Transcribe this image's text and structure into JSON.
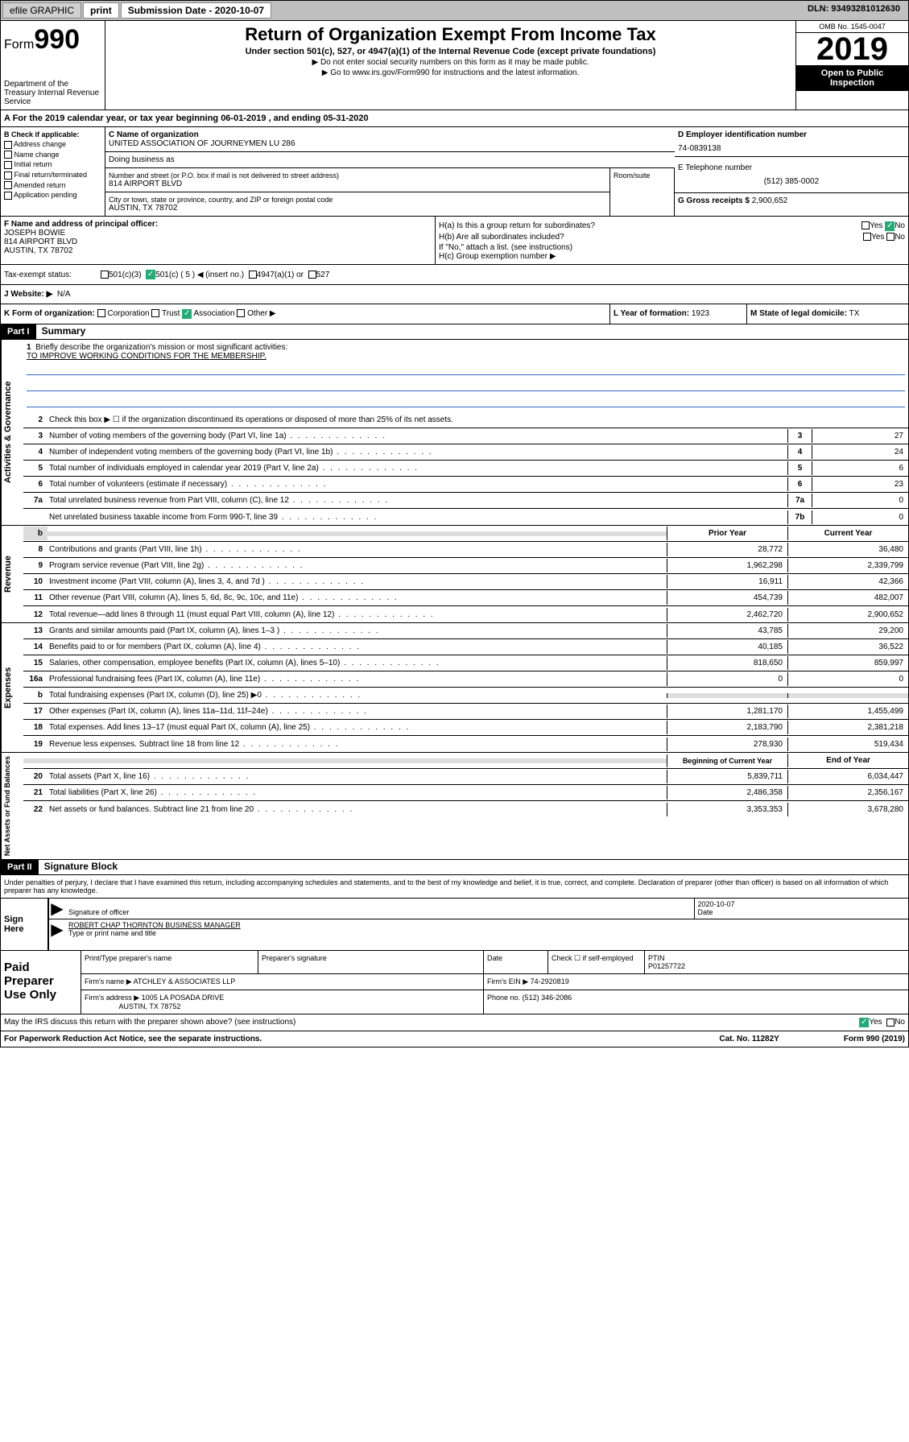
{
  "topbar": {
    "efile": "efile GRAPHIC",
    "print": "print",
    "sub_date_label": "Submission Date - 2020-10-07",
    "dln": "DLN: 93493281012630"
  },
  "header": {
    "form_word": "Form",
    "form_no": "990",
    "title": "Return of Organization Exempt From Income Tax",
    "subtitle": "Under section 501(c), 527, or 4947(a)(1) of the Internal Revenue Code (except private foundations)",
    "note1": "▶ Do not enter social security numbers on this form as it may be made public.",
    "note2_pre": "▶ Go to ",
    "note2_link": "www.irs.gov/Form990",
    "note2_post": " for instructions and the latest information.",
    "omb": "OMB No. 1545-0047",
    "year": "2019",
    "open_pub": "Open to Public Inspection",
    "dept": "Department of the Treasury\nInternal Revenue Service"
  },
  "period": {
    "text": "A For the 2019 calendar year, or tax year beginning 06-01-2019   , and ending 05-31-2020"
  },
  "section_b": {
    "label": "B Check if applicable:",
    "opts": [
      "Address change",
      "Name change",
      "Initial return",
      "Final return/terminated",
      "Amended return",
      "Application pending"
    ]
  },
  "section_c": {
    "name_label": "C Name of organization",
    "name": "UNITED ASSOCIATION OF JOURNEYMEN LU 286",
    "dba_label": "Doing business as",
    "dba": "",
    "addr_label": "Number and street (or P.O. box if mail is not delivered to street address)",
    "addr": "814 AIRPORT BLVD",
    "room_label": "Room/suite",
    "city_label": "City or town, state or province, country, and ZIP or foreign postal code",
    "city": "AUSTIN, TX  78702"
  },
  "section_d": {
    "label": "D Employer identification number",
    "ein": "74-0839138"
  },
  "section_e": {
    "label": "E Telephone number",
    "phone": "(512) 385-0002"
  },
  "section_g": {
    "label": "G Gross receipts $",
    "val": "2,900,652"
  },
  "section_f": {
    "label": "F  Name and address of principal officer:",
    "name": "JOSEPH BOWIE",
    "addr1": "814 AIRPORT BLVD",
    "addr2": "AUSTIN, TX  78702"
  },
  "section_h": {
    "a": "H(a)  Is this a group return for subordinates?",
    "b": "H(b)  Are all subordinates included?",
    "b_note": "If \"No,\" attach a list. (see instructions)",
    "c": "H(c)  Group exemption number ▶",
    "yes": "Yes",
    "no": "No"
  },
  "tax_status": {
    "label": "Tax-exempt status:",
    "c3": "501(c)(3)",
    "c": "501(c) ( 5 ) ◀ (insert no.)",
    "a1": "4947(a)(1) or",
    "s527": "527"
  },
  "section_j": {
    "label": "J Website: ▶",
    "val": "N/A"
  },
  "section_k": {
    "label": "K Form of organization:",
    "corp": "Corporation",
    "trust": "Trust",
    "assoc": "Association",
    "other": "Other ▶"
  },
  "section_l": {
    "label": "L Year of formation:",
    "val": "1923"
  },
  "section_m": {
    "label": "M State of legal domicile:",
    "val": "TX"
  },
  "part1": {
    "header": "Part I",
    "title": "Summary",
    "q1": "Briefly describe the organization's mission or most significant activities:",
    "mission": "TO IMPROVE WORKING CONDITIONS FOR THE MEMBERSHIP.",
    "q2": "Check this box ▶ ☐  if the organization discontinued its operations or disposed of more than 25% of its net assets.",
    "rows_gov": [
      {
        "n": "3",
        "t": "Number of voting members of the governing body (Part VI, line 1a)",
        "vn": "3",
        "v": "27"
      },
      {
        "n": "4",
        "t": "Number of independent voting members of the governing body (Part VI, line 1b)",
        "vn": "4",
        "v": "24"
      },
      {
        "n": "5",
        "t": "Total number of individuals employed in calendar year 2019 (Part V, line 2a)",
        "vn": "5",
        "v": "6"
      },
      {
        "n": "6",
        "t": "Total number of volunteers (estimate if necessary)",
        "vn": "6",
        "v": "23"
      },
      {
        "n": "7a",
        "t": "Total unrelated business revenue from Part VIII, column (C), line 12",
        "vn": "7a",
        "v": "0"
      },
      {
        "n": "",
        "t": "Net unrelated business taxable income from Form 990-T, line 39",
        "vn": "7b",
        "v": "0"
      }
    ],
    "col_prior": "Prior Year",
    "col_curr": "Current Year",
    "rows_rev": [
      {
        "n": "8",
        "t": "Contributions and grants (Part VIII, line 1h)",
        "p": "28,772",
        "c": "36,480"
      },
      {
        "n": "9",
        "t": "Program service revenue (Part VIII, line 2g)",
        "p": "1,962,298",
        "c": "2,339,799"
      },
      {
        "n": "10",
        "t": "Investment income (Part VIII, column (A), lines 3, 4, and 7d )",
        "p": "16,911",
        "c": "42,366"
      },
      {
        "n": "11",
        "t": "Other revenue (Part VIII, column (A), lines 5, 6d, 8c, 9c, 10c, and 11e)",
        "p": "454,739",
        "c": "482,007"
      },
      {
        "n": "12",
        "t": "Total revenue—add lines 8 through 11 (must equal Part VIII, column (A), line 12)",
        "p": "2,462,720",
        "c": "2,900,652"
      }
    ],
    "rows_exp": [
      {
        "n": "13",
        "t": "Grants and similar amounts paid (Part IX, column (A), lines 1–3 )",
        "p": "43,785",
        "c": "29,200"
      },
      {
        "n": "14",
        "t": "Benefits paid to or for members (Part IX, column (A), line 4)",
        "p": "40,185",
        "c": "36,522"
      },
      {
        "n": "15",
        "t": "Salaries, other compensation, employee benefits (Part IX, column (A), lines 5–10)",
        "p": "818,650",
        "c": "859,997"
      },
      {
        "n": "16a",
        "t": "Professional fundraising fees (Part IX, column (A), line 11e)",
        "p": "0",
        "c": "0"
      },
      {
        "n": "b",
        "t": "Total fundraising expenses (Part IX, column (D), line 25) ▶0",
        "p": "",
        "c": "",
        "shade": true
      },
      {
        "n": "17",
        "t": "Other expenses (Part IX, column (A), lines 11a–11d, 11f–24e)",
        "p": "1,281,170",
        "c": "1,455,499"
      },
      {
        "n": "18",
        "t": "Total expenses. Add lines 13–17 (must equal Part IX, column (A), line 25)",
        "p": "2,183,790",
        "c": "2,381,218"
      },
      {
        "n": "19",
        "t": "Revenue less expenses. Subtract line 18 from line 12",
        "p": "278,930",
        "c": "519,434"
      }
    ],
    "col_begin": "Beginning of Current Year",
    "col_end": "End of Year",
    "rows_net": [
      {
        "n": "20",
        "t": "Total assets (Part X, line 16)",
        "p": "5,839,711",
        "c": "6,034,447"
      },
      {
        "n": "21",
        "t": "Total liabilities (Part X, line 26)",
        "p": "2,486,358",
        "c": "2,356,167"
      },
      {
        "n": "22",
        "t": "Net assets or fund balances. Subtract line 21 from line 20",
        "p": "3,353,353",
        "c": "3,678,280"
      }
    ],
    "v_gov": "Activities & Governance",
    "v_rev": "Revenue",
    "v_exp": "Expenses",
    "v_net": "Net Assets or Fund Balances"
  },
  "part2": {
    "header": "Part II",
    "title": "Signature Block",
    "perjury": "Under penalties of perjury, I declare that I have examined this return, including accompanying schedules and statements, and to the best of my knowledge and belief, it is true, correct, and complete. Declaration of preparer (other than officer) is based on all information of which preparer has any knowledge.",
    "sign_label": "Sign Here",
    "sig_of_officer": "Signature of officer",
    "date_label": "Date",
    "date_val": "2020-10-07",
    "officer_name": "ROBERT CHAP THORNTON  BUSINESS MANAGER",
    "type_label": "Type or print name and title",
    "paid_label": "Paid Preparer Use Only",
    "prep_name_label": "Print/Type preparer's name",
    "prep_sig_label": "Preparer's signature",
    "check_self": "Check ☐ if self-employed",
    "ptin_label": "PTIN",
    "ptin": "P01257722",
    "firm_name_label": "Firm's name   ▶",
    "firm_name": "ATCHLEY & ASSOCIATES LLP",
    "firm_ein_label": "Firm's EIN ▶",
    "firm_ein": "74-2920819",
    "firm_addr_label": "Firm's address ▶",
    "firm_addr": "1005 LA POSADA DRIVE",
    "firm_city": "AUSTIN, TX  78752",
    "phone_label": "Phone no.",
    "phone": "(512) 346-2086",
    "discuss": "May the IRS discuss this return with the preparer shown above? (see instructions)",
    "yes": "Yes",
    "no": "No"
  },
  "footer": {
    "paperwork": "For Paperwork Reduction Act Notice, see the separate instructions.",
    "cat": "Cat. No. 11282Y",
    "form": "Form 990 (2019)"
  }
}
